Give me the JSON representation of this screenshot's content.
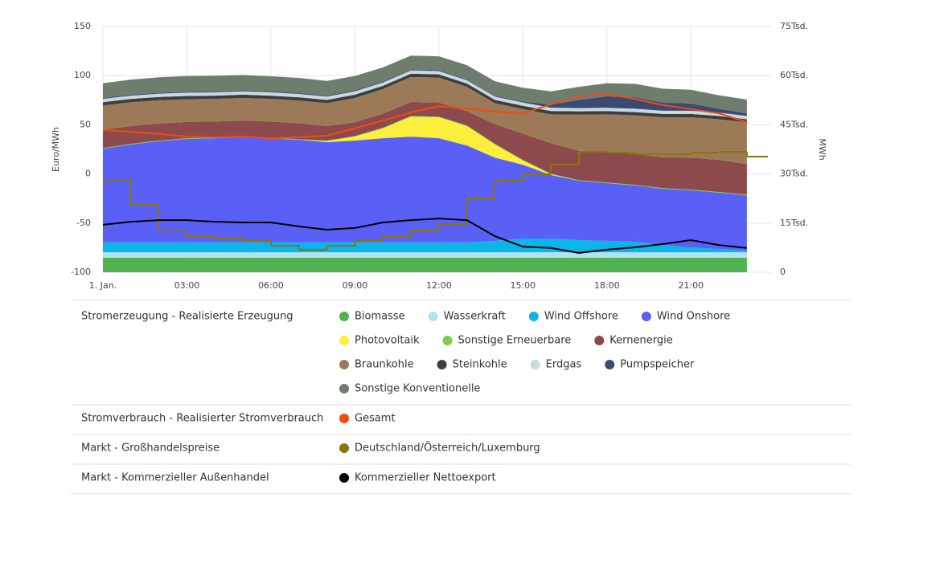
{
  "chart_data": {
    "type": "area",
    "x": [
      0,
      1,
      2,
      3,
      4,
      5,
      6,
      7,
      8,
      9,
      10,
      11,
      12,
      13,
      14,
      15,
      16,
      17,
      18,
      19,
      20,
      21,
      22,
      23
    ],
    "xlim": [
      0,
      23.75
    ],
    "xticks": [
      {
        "value": 0,
        "label": "1. Jan."
      },
      {
        "value": 3,
        "label": "03:00"
      },
      {
        "value": 6,
        "label": "06:00"
      },
      {
        "value": 9,
        "label": "09:00"
      },
      {
        "value": 12,
        "label": "12:00"
      },
      {
        "value": 15,
        "label": "15:00"
      },
      {
        "value": 18,
        "label": "18:00"
      },
      {
        "value": 21,
        "label": "21:00"
      }
    ],
    "ylim": [
      -100,
      150
    ],
    "yticks": [
      -100,
      -50,
      0,
      50,
      100,
      150
    ],
    "y_label": "Euro/MWh",
    "y2lim": [
      0,
      75000
    ],
    "y2ticks": [
      0,
      {
        "value": 15000,
        "label": "15Tsd."
      },
      {
        "value": 30000,
        "label": "30Tsd."
      },
      {
        "value": 45000,
        "label": "45Tsd."
      },
      {
        "value": 60000,
        "label": "60Tsd."
      },
      {
        "value": 75000,
        "label": "75Tsd."
      }
    ],
    "y2_label": "MWh",
    "grid": true,
    "groups": [
      {
        "title": "Stromerzeugung - Realisierte Erzeugung",
        "style": "area",
        "series": [
          {
            "name": "Biomasse",
            "color": "#4fb350",
            "axis": "y2",
            "values": [
              4400,
              4400,
              4400,
              4400,
              4400,
              4400,
              4400,
              4400,
              4400,
              4400,
              4400,
              4400,
              4400,
              4400,
              4400,
              4400,
              4400,
              4400,
              4400,
              4400,
              4400,
              4400,
              4400,
              4400
            ]
          },
          {
            "name": "Wasserkraft",
            "color": "#b3e2f3",
            "axis": "y2",
            "values": [
              1700,
              1700,
              1700,
              1700,
              1700,
              1700,
              1700,
              1700,
              1700,
              1700,
              1700,
              1700,
              1700,
              1700,
              1700,
              1700,
              1700,
              1700,
              1700,
              1700,
              1700,
              1700,
              1700,
              1700
            ]
          },
          {
            "name": "Wind Offshore",
            "color": "#0cb5e8",
            "axis": "y2",
            "values": [
              3000,
              3000,
              3000,
              3000,
              3000,
              3000,
              3000,
              3000,
              3000,
              3000,
              3000,
              3000,
              3000,
              3000,
              3500,
              4200,
              4200,
              3700,
              3500,
              3200,
              2200,
              1500,
              1000,
              500
            ]
          },
          {
            "name": "Wind Onshore",
            "color": "#5a60f6",
            "axis": "y2",
            "values": [
              28600,
              29900,
              30900,
              31600,
              31800,
              32100,
              31800,
              31300,
              30600,
              31100,
              31800,
              32300,
              31800,
              29600,
              25400,
              22500,
              19400,
              18100,
              17600,
              17200,
              17200,
              17400,
              17200,
              16900
            ]
          },
          {
            "name": "Photovoltaik",
            "color": "#f9ef3c",
            "axis": "y2",
            "values": [
              0,
              0,
              0,
              0,
              0,
              0,
              0,
              0,
              300,
              1200,
              3000,
              6100,
              6400,
              5900,
              4000,
              1300,
              200,
              0,
              0,
              0,
              0,
              0,
              0,
              0
            ]
          },
          {
            "name": "Sonstige Erneuerbare",
            "color": "#7dcb51",
            "axis": "y2",
            "values": [
              200,
              200,
              200,
              200,
              200,
              200,
              200,
              200,
              200,
              200,
              200,
              200,
              200,
              200,
              200,
              200,
              200,
              200,
              200,
              200,
              200,
              200,
              200,
              200
            ]
          },
          {
            "name": "Kernenergie",
            "color": "#8c4a4c",
            "axis": "y2",
            "values": [
              5600,
              5400,
              5200,
              5000,
              4900,
              4900,
              4900,
              4900,
              4400,
              4200,
              4300,
              4300,
              4300,
              4400,
              6000,
              8000,
              9300,
              9000,
              9300,
              9400,
              9400,
              9800,
              9800,
              9300
            ]
          },
          {
            "name": "Braunkohle",
            "color": "#9c7a58",
            "axis": "y2",
            "values": [
              7400,
              7300,
              7100,
              6900,
              6900,
              6900,
              6900,
              6900,
              7000,
              7400,
              7500,
              7600,
              7600,
              7400,
              6400,
              7500,
              8800,
              11000,
              11500,
              11800,
              12200,
              12300,
              12400,
              12700
            ]
          },
          {
            "name": "Steinkohle",
            "color": "#3e3e3e",
            "axis": "y2",
            "values": [
              1000,
              1000,
              1000,
              1000,
              1000,
              1000,
              1000,
              1000,
              1000,
              1000,
              1000,
              1000,
              1000,
              1000,
              1000,
              1000,
              1000,
              1000,
              1000,
              1000,
              1000,
              1000,
              1000,
              1000
            ]
          },
          {
            "name": "Erdgas",
            "color": "#c8dadd",
            "axis": "y2",
            "values": [
              1000,
              1000,
              1000,
              1000,
              1000,
              1000,
              1000,
              1000,
              1000,
              1000,
              1000,
              1000,
              1000,
              1000,
              1000,
              1000,
              1000,
              1000,
              1000,
              1000,
              1000,
              1000,
              1000,
              1000
            ]
          },
          {
            "name": "Pumpspeicher",
            "color": "#3b4a71",
            "axis": "y2",
            "values": [
              300,
              300,
              300,
              300,
              300,
              300,
              300,
              300,
              300,
              300,
              300,
              300,
              300,
              300,
              300,
              300,
              1000,
              2500,
              3500,
              3500,
              2500,
              2200,
              1200,
              800
            ]
          },
          {
            "name": "Sonstige Konventionelle",
            "color": "#6f7d6e",
            "axis": "y2",
            "values": [
              4500,
              4600,
              4700,
              4800,
              4800,
              4700,
              4600,
              4600,
              4500,
              4400,
              4300,
              4200,
              4200,
              4300,
              4400,
              4200,
              4000,
              4000,
              4000,
              4100,
              4200,
              4200,
              4100,
              4200
            ]
          }
        ]
      },
      {
        "title": "Stromverbrauch - Realisierter Stromverbrauch",
        "style": "line",
        "series": [
          {
            "name": "Gesamt",
            "color": "#f04b12",
            "axis": "y2",
            "values": [
              43400,
              42900,
              42200,
              41400,
              41200,
              41400,
              40900,
              41200,
              41700,
              43900,
              46300,
              48800,
              50700,
              50000,
              49000,
              48500,
              51200,
              53700,
              54400,
              52900,
              51000,
              49800,
              48500,
              45800
            ]
          }
        ]
      },
      {
        "title": "Markt - Großhandelspreise",
        "style": "step",
        "series": [
          {
            "name": "Deutschland/Österreich/Luxemburg",
            "color": "#8b7412",
            "axis": "y",
            "values": [
              -6,
              -31.4,
              -58.3,
              -64,
              -65.7,
              -68.1,
              -73,
              -77.1,
              -73,
              -68.1,
              -63.2,
              -57.5,
              -51,
              -24.8,
              -6.9,
              -0.3,
              9.5,
              22.5,
              21.7,
              20.1,
              20.1,
              21.7,
              22.5,
              17.6
            ]
          }
        ]
      },
      {
        "title": "Markt - Kommerzieller Außenhandel",
        "style": "line",
        "series": [
          {
            "name": "Kommerzieller Nettoexport",
            "color": "#000000",
            "axis": "y2",
            "values": [
              14500,
              15400,
              15900,
              15900,
              15400,
              15200,
              15200,
              14000,
              13000,
              13500,
              15200,
              15900,
              16400,
              15900,
              11000,
              7800,
              7400,
              5900,
              6900,
              7600,
              8600,
              9800,
              8300,
              7400
            ]
          }
        ]
      }
    ]
  }
}
